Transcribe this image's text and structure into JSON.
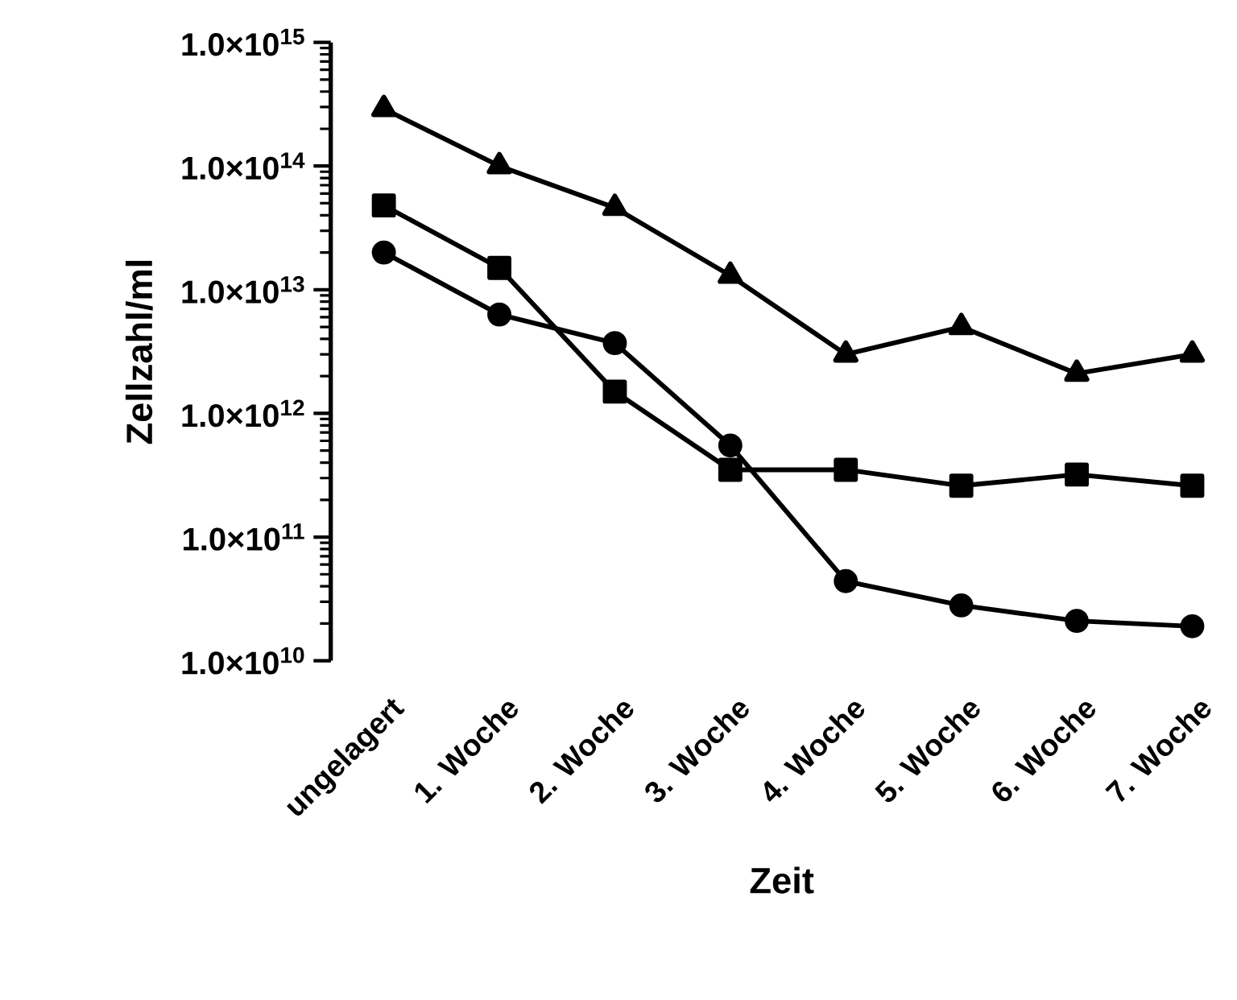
{
  "chart_data": {
    "type": "line",
    "xlabel": "Zeit",
    "ylabel": "Zellzahl/ml",
    "log": "y",
    "categories": [
      "ungelagert",
      "1. Woche",
      "2. Woche",
      "3. Woche",
      "4. Woche",
      "5. Woche",
      "6. Woche",
      "7. Woche"
    ],
    "ylim": [
      10000000000.0,
      1000000000000000.0
    ],
    "yticks": [
      {
        "value": 10000000000.0,
        "label": "1.0×10$^{10}$"
      },
      {
        "value": 100000000000.0,
        "label": "1.0×10$^{11}$"
      },
      {
        "value": 1000000000000.0,
        "label": "1.0×10$^{12}$"
      },
      {
        "value": 10000000000000.0,
        "label": "1.0×10$^{13}$"
      },
      {
        "value": 100000000000000.0,
        "label": "1.0×10$^{14}$"
      },
      {
        "value": 1000000000000000.0,
        "label": "1.0×10$^{15}$"
      }
    ],
    "grid": false,
    "line_style": "solid",
    "series": [
      {
        "color": "#000000",
        "marker": "triangle",
        "values": [
          290000000000000.0,
          100000000000000.0,
          46000000000000.0,
          13000000000000.0,
          3000000000000.0,
          5000000000000.0,
          2100000000000.0,
          3000000000000.0
        ]
      },
      {
        "color": "#000000",
        "marker": "square",
        "values": [
          48000000000000.0,
          15000000000000.0,
          1500000000000.0,
          350000000000.0,
          350000000000.0,
          260000000000.0,
          320000000000.0,
          260000000000.0
        ]
      },
      {
        "color": "#000000",
        "marker": "circle",
        "values": [
          20000000000000.0,
          6300000000000.0,
          3700000000000.0,
          550000000000.0,
          44000000000.0,
          28000000000.0,
          21000000000.0,
          19000000000.0
        ]
      }
    ]
  }
}
